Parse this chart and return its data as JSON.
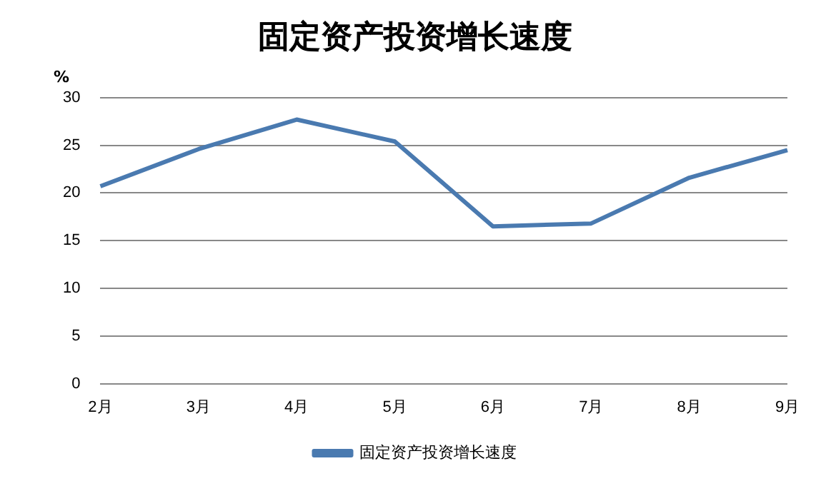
{
  "chart_data": {
    "type": "line",
    "title": "固定资产投资增长速度",
    "ylabel": "%",
    "categories": [
      "2月",
      "3月",
      "4月",
      "5月",
      "6月",
      "7月",
      "8月",
      "9月"
    ],
    "series": [
      {
        "name": "固定资产投资增长速度",
        "color": "#4a7ab0",
        "values": [
          20.7,
          24.6,
          27.7,
          25.4,
          16.5,
          16.8,
          21.6,
          24.5
        ]
      }
    ],
    "ylim": [
      0,
      30
    ],
    "yticks": [
      0,
      5,
      10,
      15,
      20,
      25,
      30
    ],
    "grid": "y",
    "legend": "bottom",
    "marker": "none",
    "line_style": "solid"
  }
}
